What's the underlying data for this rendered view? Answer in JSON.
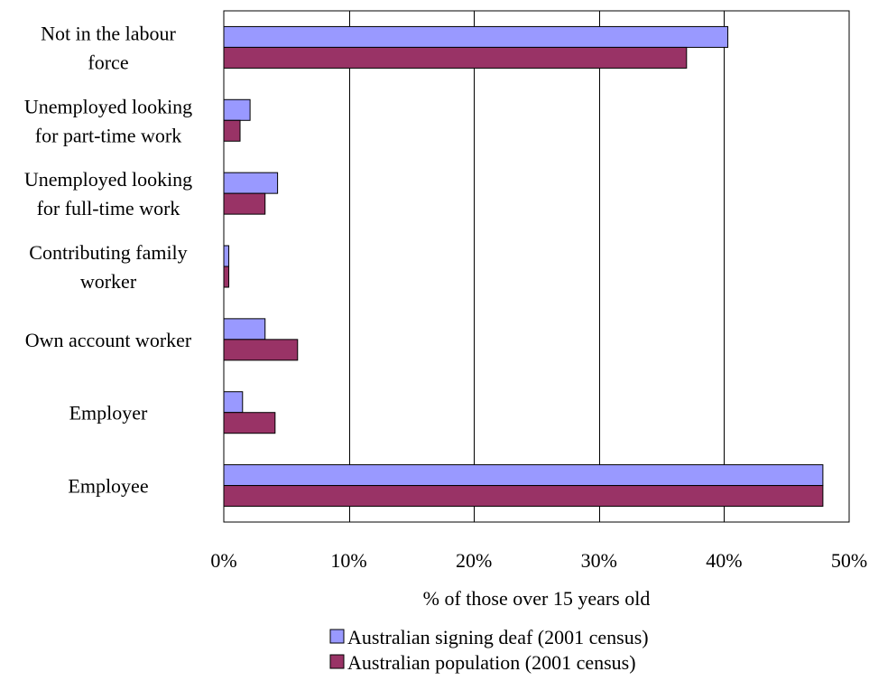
{
  "chart_data": {
    "type": "bar",
    "orientation": "horizontal",
    "categories": [
      [
        "Not in the labour",
        "force"
      ],
      [
        "Unemployed looking",
        "for part-time work"
      ],
      [
        "Unemployed looking",
        "for full-time work"
      ],
      [
        "Contributing family",
        "worker"
      ],
      [
        "Own account worker"
      ],
      [
        "Employer"
      ],
      [
        "Employee"
      ]
    ],
    "series": [
      {
        "name": "Australian signing deaf (2001 census)",
        "color": "#9999ff",
        "values": [
          40.3,
          2.1,
          4.3,
          0.4,
          3.3,
          1.5,
          47.9
        ]
      },
      {
        "name": "Australian population (2001 census)",
        "color": "#993366",
        "values": [
          37.0,
          1.3,
          3.3,
          0.4,
          5.9,
          4.1,
          47.9
        ]
      }
    ],
    "xlabel": "% of those over 15 years old",
    "xlim": [
      0,
      50
    ],
    "xticks": [
      0,
      10,
      20,
      30,
      40,
      50
    ],
    "xtick_labels": [
      "0%",
      "10%",
      "20%",
      "30%",
      "40%",
      "50%"
    ],
    "grid": "vertical",
    "legend": "bottom"
  }
}
